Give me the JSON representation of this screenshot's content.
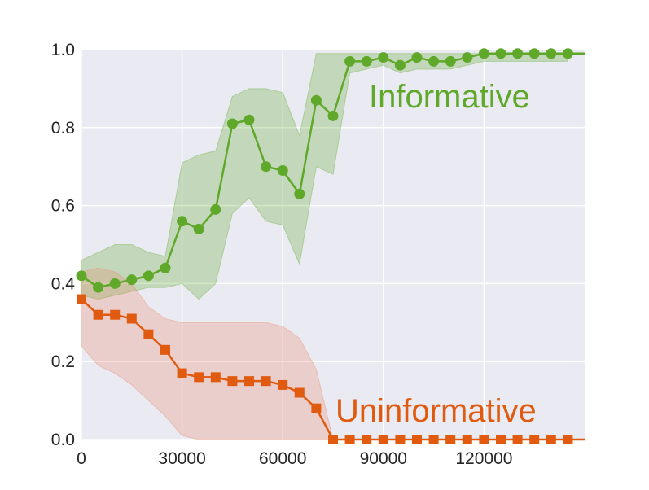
{
  "chart_data": {
    "type": "line",
    "title": "",
    "xlabel": "",
    "ylabel": "",
    "xlim": [
      0,
      150000
    ],
    "ylim": [
      0,
      1.0
    ],
    "grid": true,
    "background": "#eaeaf2",
    "x_ticks": [
      0,
      30000,
      60000,
      90000,
      120000
    ],
    "x_tick_labels": [
      "0",
      "30000",
      "60000",
      "90000",
      "120000"
    ],
    "y_ticks": [
      0.0,
      0.2,
      0.4,
      0.6,
      0.8,
      1.0
    ],
    "y_tick_labels": [
      "0.0",
      "0.2",
      "0.4",
      "0.6",
      "0.8",
      "1.0"
    ],
    "series": [
      {
        "name": "Informative",
        "color": "#5fa82a",
        "band_color": "#5fa82a",
        "marker": "circle",
        "x": [
          0,
          5000,
          10000,
          15000,
          20000,
          25000,
          30000,
          35000,
          40000,
          45000,
          50000,
          55000,
          60000,
          65000,
          70000,
          75000,
          80000,
          85000,
          90000,
          95000,
          100000,
          105000,
          110000,
          115000,
          120000,
          125000,
          130000,
          135000,
          140000,
          145000
        ],
        "y": [
          0.42,
          0.39,
          0.4,
          0.41,
          0.42,
          0.44,
          0.56,
          0.54,
          0.59,
          0.81,
          0.82,
          0.7,
          0.69,
          0.63,
          0.87,
          0.83,
          0.97,
          0.97,
          0.98,
          0.96,
          0.98,
          0.97,
          0.97,
          0.98,
          0.99,
          0.99,
          0.99,
          0.99,
          0.99,
          0.99
        ],
        "lower": [
          0.37,
          0.36,
          0.37,
          0.38,
          0.39,
          0.39,
          0.4,
          0.36,
          0.4,
          0.58,
          0.62,
          0.56,
          0.55,
          0.45,
          0.7,
          0.68,
          0.94,
          0.95,
          0.96,
          0.94,
          0.95,
          0.95,
          0.95,
          0.96,
          0.97,
          0.97,
          0.97,
          0.97,
          0.97,
          0.97
        ],
        "upper": [
          0.46,
          0.48,
          0.5,
          0.5,
          0.48,
          0.47,
          0.71,
          0.73,
          0.74,
          0.88,
          0.9,
          0.9,
          0.89,
          0.78,
          0.99,
          0.99,
          0.99,
          0.99,
          0.99,
          0.99,
          0.99,
          0.99,
          0.99,
          0.99,
          0.99,
          0.99,
          0.99,
          0.99,
          0.99,
          0.99
        ]
      },
      {
        "name": "Uninformative",
        "color": "#e05b10",
        "band_color": "#e8866a",
        "marker": "square",
        "x": [
          0,
          5000,
          10000,
          15000,
          20000,
          25000,
          30000,
          35000,
          40000,
          45000,
          50000,
          55000,
          60000,
          65000,
          70000,
          75000,
          80000,
          85000,
          90000,
          95000,
          100000,
          105000,
          110000,
          115000,
          120000,
          125000,
          130000,
          135000,
          140000,
          145000
        ],
        "y": [
          0.36,
          0.32,
          0.32,
          0.31,
          0.27,
          0.23,
          0.17,
          0.16,
          0.16,
          0.15,
          0.15,
          0.15,
          0.14,
          0.12,
          0.08,
          0.0,
          0.0,
          0.0,
          0.0,
          0.0,
          0.0,
          0.0,
          0.0,
          0.0,
          0.0,
          0.0,
          0.0,
          0.0,
          0.0,
          0.0
        ],
        "lower": [
          0.24,
          0.19,
          0.17,
          0.14,
          0.1,
          0.06,
          0.01,
          0.0,
          0.0,
          0.0,
          0.0,
          0.0,
          0.0,
          0.0,
          0.0,
          0.0,
          0.0,
          0.0,
          0.0,
          0.0,
          0.0,
          0.0,
          0.0,
          0.0,
          0.0,
          0.0,
          0.0,
          0.0,
          0.0,
          0.0
        ],
        "upper": [
          0.43,
          0.44,
          0.43,
          0.4,
          0.34,
          0.31,
          0.3,
          0.3,
          0.3,
          0.3,
          0.3,
          0.3,
          0.29,
          0.26,
          0.18,
          0.0,
          0.0,
          0.0,
          0.0,
          0.0,
          0.0,
          0.0,
          0.0,
          0.0,
          0.0,
          0.0,
          0.0,
          0.0,
          0.0,
          0.0
        ]
      }
    ],
    "annotations": [
      {
        "text": "Informative",
        "series": "Informative"
      },
      {
        "text": "Uninformative",
        "series": "Uninformative"
      }
    ]
  }
}
